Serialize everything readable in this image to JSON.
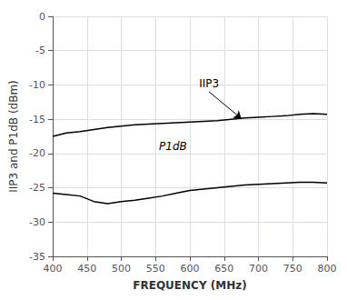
{
  "chart_data": {
    "type": "line",
    "xlabel": "FREQUENCY (MHz)",
    "ylabel": "IIP3 and P1dB (dBm)",
    "x": [
      400,
      420,
      440,
      460,
      480,
      500,
      520,
      540,
      560,
      580,
      600,
      620,
      640,
      660,
      680,
      700,
      720,
      740,
      760,
      780,
      800
    ],
    "series": [
      {
        "color": "#000000",
        "values": [
          -17.5,
          -17.0,
          -16.8,
          -16.5,
          -16.2,
          -16.0,
          -15.8,
          -15.7,
          -15.6,
          -15.5,
          -15.4,
          -15.3,
          -15.2,
          -15.0,
          -14.8,
          -14.7,
          -14.6,
          -14.5,
          -14.3,
          -14.2,
          -14.3
        ]
      },
      {
        "color": "#000000",
        "values": [
          -25.8,
          -26.0,
          -26.2,
          -27.0,
          -27.3,
          -27.0,
          -26.8,
          -26.5,
          -26.2,
          -25.8,
          -25.4,
          -25.2,
          -25.0,
          -24.8,
          -24.6,
          -24.5,
          -24.4,
          -24.3,
          -24.2,
          -24.2,
          -24.3
        ]
      }
    ],
    "xlim": [
      400,
      800
    ],
    "ylim": [
      -35,
      0
    ],
    "xticks": [
      400,
      450,
      500,
      550,
      600,
      650,
      700,
      750,
      800
    ],
    "yticks": [
      0,
      -5,
      -10,
      -15,
      -20,
      -25,
      -30,
      -35
    ],
    "grid": true,
    "annotations": [
      {
        "text": "IIP3",
        "x": 628,
        "y": -11.0,
        "arrow_x": 675,
        "arrow_y": -14.9
      },
      {
        "text": "P1dB",
        "x": 555,
        "y": -19.0
      }
    ]
  }
}
